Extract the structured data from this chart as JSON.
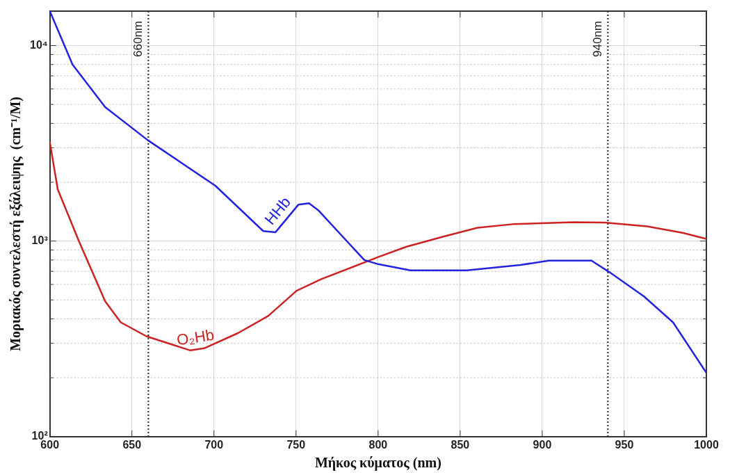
{
  "chart_data": {
    "type": "line",
    "xlabel": "Μήκος κύματος (nm)",
    "ylabel": "Μοριακός συντελεστή εξάλειψης  (cm⁻¹/M)",
    "log": "y",
    "grid": true,
    "legend": false,
    "marker": "none",
    "line_style": "solid",
    "xlim": [
      600,
      1000
    ],
    "xticks": [
      600,
      650,
      700,
      750,
      800,
      850,
      900,
      950,
      1000
    ],
    "ylim": [
      100,
      15000
    ],
    "yticks": [
      {
        "value": 100,
        "label": "10²"
      },
      {
        "value": 200,
        "label": null
      },
      {
        "value": 300,
        "label": null
      },
      {
        "value": 400,
        "label": null
      },
      {
        "value": 500,
        "label": null
      },
      {
        "value": 600,
        "label": null
      },
      {
        "value": 700,
        "label": null
      },
      {
        "value": 800,
        "label": null
      },
      {
        "value": 900,
        "label": null
      },
      {
        "value": 1000,
        "label": "10³"
      },
      {
        "value": 2000,
        "label": null
      },
      {
        "value": 3000,
        "label": null
      },
      {
        "value": 4000,
        "label": null
      },
      {
        "value": 5000,
        "label": null
      },
      {
        "value": 6000,
        "label": null
      },
      {
        "value": 7000,
        "label": null
      },
      {
        "value": 8000,
        "label": null
      },
      {
        "value": 9000,
        "label": null
      },
      {
        "value": 10000,
        "label": "10⁴"
      }
    ],
    "series": [
      {
        "name": "HHb",
        "color": "#2222e0",
        "x": [
          600,
          613.8,
          633.7,
          659.7,
          700.8,
          730,
          737.5,
          751.4,
          757.9,
          763.5,
          791.6,
          800,
          819.7,
          854,
          886.7,
          904,
          930,
          940.8,
          962,
          979.7,
          1000
        ],
        "values": [
          15000,
          8000,
          4840,
          3280,
          1920,
          1125,
          1110,
          1535,
          1560,
          1440,
          800,
          762,
          708,
          708,
          755,
          794,
          794,
          695,
          521,
          384,
          212
        ]
      },
      {
        "name": "O₂Hb",
        "color": "#cc2222",
        "x": [
          600,
          604.8,
          617.7,
          633.7,
          643.2,
          658.8,
          685.6,
          694,
          714.8,
          733,
          750.3,
          765.6,
          800,
          817.3,
          838.9,
          860.5,
          882,
          919,
          938,
          964,
          986,
          1000
        ],
        "values": [
          3200,
          1840,
          1000,
          492,
          384,
          326,
          276,
          283,
          339,
          414,
          557,
          640,
          828,
          936,
          1050,
          1170,
          1220,
          1250,
          1245,
          1190,
          1100,
          1026
        ]
      }
    ],
    "ref_lines": [
      {
        "axis": "x",
        "value": 660,
        "label": "660nm",
        "color": "#333333",
        "line_style": "dotted"
      },
      {
        "axis": "x",
        "value": 940,
        "label": "940nm",
        "color": "#333333",
        "line_style": "dotted"
      }
    ]
  }
}
